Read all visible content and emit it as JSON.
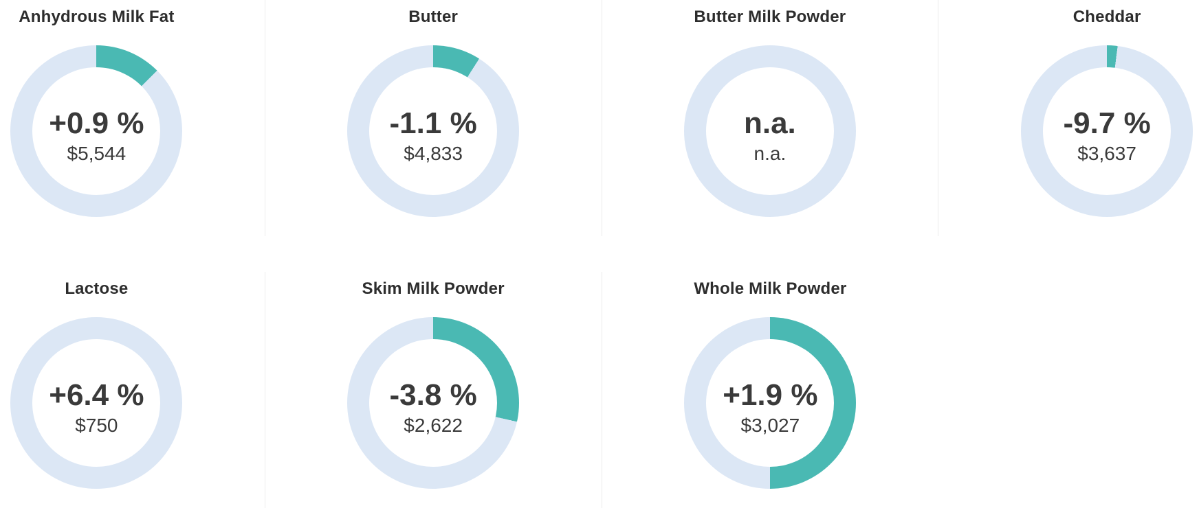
{
  "colors": {
    "arc_active": "#4ab9b3",
    "arc_track": "#dce7f5",
    "divider": "#ececec",
    "title_text": "#2d2d2d",
    "value_text": "#3a3a3a",
    "background": "#ffffff"
  },
  "layout_hints": {
    "rows": 2,
    "top_row_products": 4,
    "bottom_row_products": 3,
    "legend": "none",
    "grid": "off"
  },
  "chart_data": [
    {
      "type": "pie",
      "variant": "donut",
      "title": "Anhydrous Milk Fat",
      "center_label": "+0.9 %",
      "sub_label": "$5,544",
      "change_percent": 0.9,
      "price_usd": 5544,
      "arc_percent": 12.5,
      "slices": [
        {
          "name": "highlight",
          "value": 12.5,
          "color": "#4ab9b3"
        },
        {
          "name": "track",
          "value": 87.5,
          "color": "#dce7f5"
        }
      ]
    },
    {
      "type": "pie",
      "variant": "donut",
      "title": "Butter",
      "center_label": "-1.1 %",
      "sub_label": "$4,833",
      "change_percent": -1.1,
      "price_usd": 4833,
      "arc_percent": 9,
      "slices": [
        {
          "name": "highlight",
          "value": 9,
          "color": "#4ab9b3"
        },
        {
          "name": "track",
          "value": 91,
          "color": "#dce7f5"
        }
      ]
    },
    {
      "type": "pie",
      "variant": "donut",
      "title": "Butter Milk Powder",
      "center_label": "n.a.",
      "sub_label": "n.a.",
      "change_percent": null,
      "price_usd": null,
      "arc_percent": 0,
      "slices": [
        {
          "name": "highlight",
          "value": 0,
          "color": "#4ab9b3"
        },
        {
          "name": "track",
          "value": 100,
          "color": "#dce7f5"
        }
      ]
    },
    {
      "type": "pie",
      "variant": "donut",
      "title": "Cheddar",
      "center_label": "-9.7 %",
      "sub_label": "$3,637",
      "change_percent": -9.7,
      "price_usd": 3637,
      "arc_percent": 2,
      "slices": [
        {
          "name": "highlight",
          "value": 2,
          "color": "#4ab9b3"
        },
        {
          "name": "track",
          "value": 98,
          "color": "#dce7f5"
        }
      ]
    },
    {
      "type": "pie",
      "variant": "donut",
      "title": "Lactose",
      "center_label": "+6.4 %",
      "sub_label": "$750",
      "change_percent": 6.4,
      "price_usd": 750,
      "arc_percent": 0,
      "slices": [
        {
          "name": "highlight",
          "value": 0,
          "color": "#4ab9b3"
        },
        {
          "name": "track",
          "value": 100,
          "color": "#dce7f5"
        }
      ]
    },
    {
      "type": "pie",
      "variant": "donut",
      "title": "Skim Milk Powder",
      "center_label": "-3.8 %",
      "sub_label": "$2,622",
      "change_percent": -3.8,
      "price_usd": 2622,
      "arc_percent": 28.5,
      "slices": [
        {
          "name": "highlight",
          "value": 28.5,
          "color": "#4ab9b3"
        },
        {
          "name": "track",
          "value": 71.5,
          "color": "#dce7f5"
        }
      ]
    },
    {
      "type": "pie",
      "variant": "donut",
      "title": "Whole Milk Powder",
      "center_label": "+1.9 %",
      "sub_label": "$3,027",
      "change_percent": 1.9,
      "price_usd": 3027,
      "arc_percent": 50,
      "slices": [
        {
          "name": "highlight",
          "value": 50,
          "color": "#4ab9b3"
        },
        {
          "name": "track",
          "value": 50,
          "color": "#dce7f5"
        }
      ]
    }
  ]
}
